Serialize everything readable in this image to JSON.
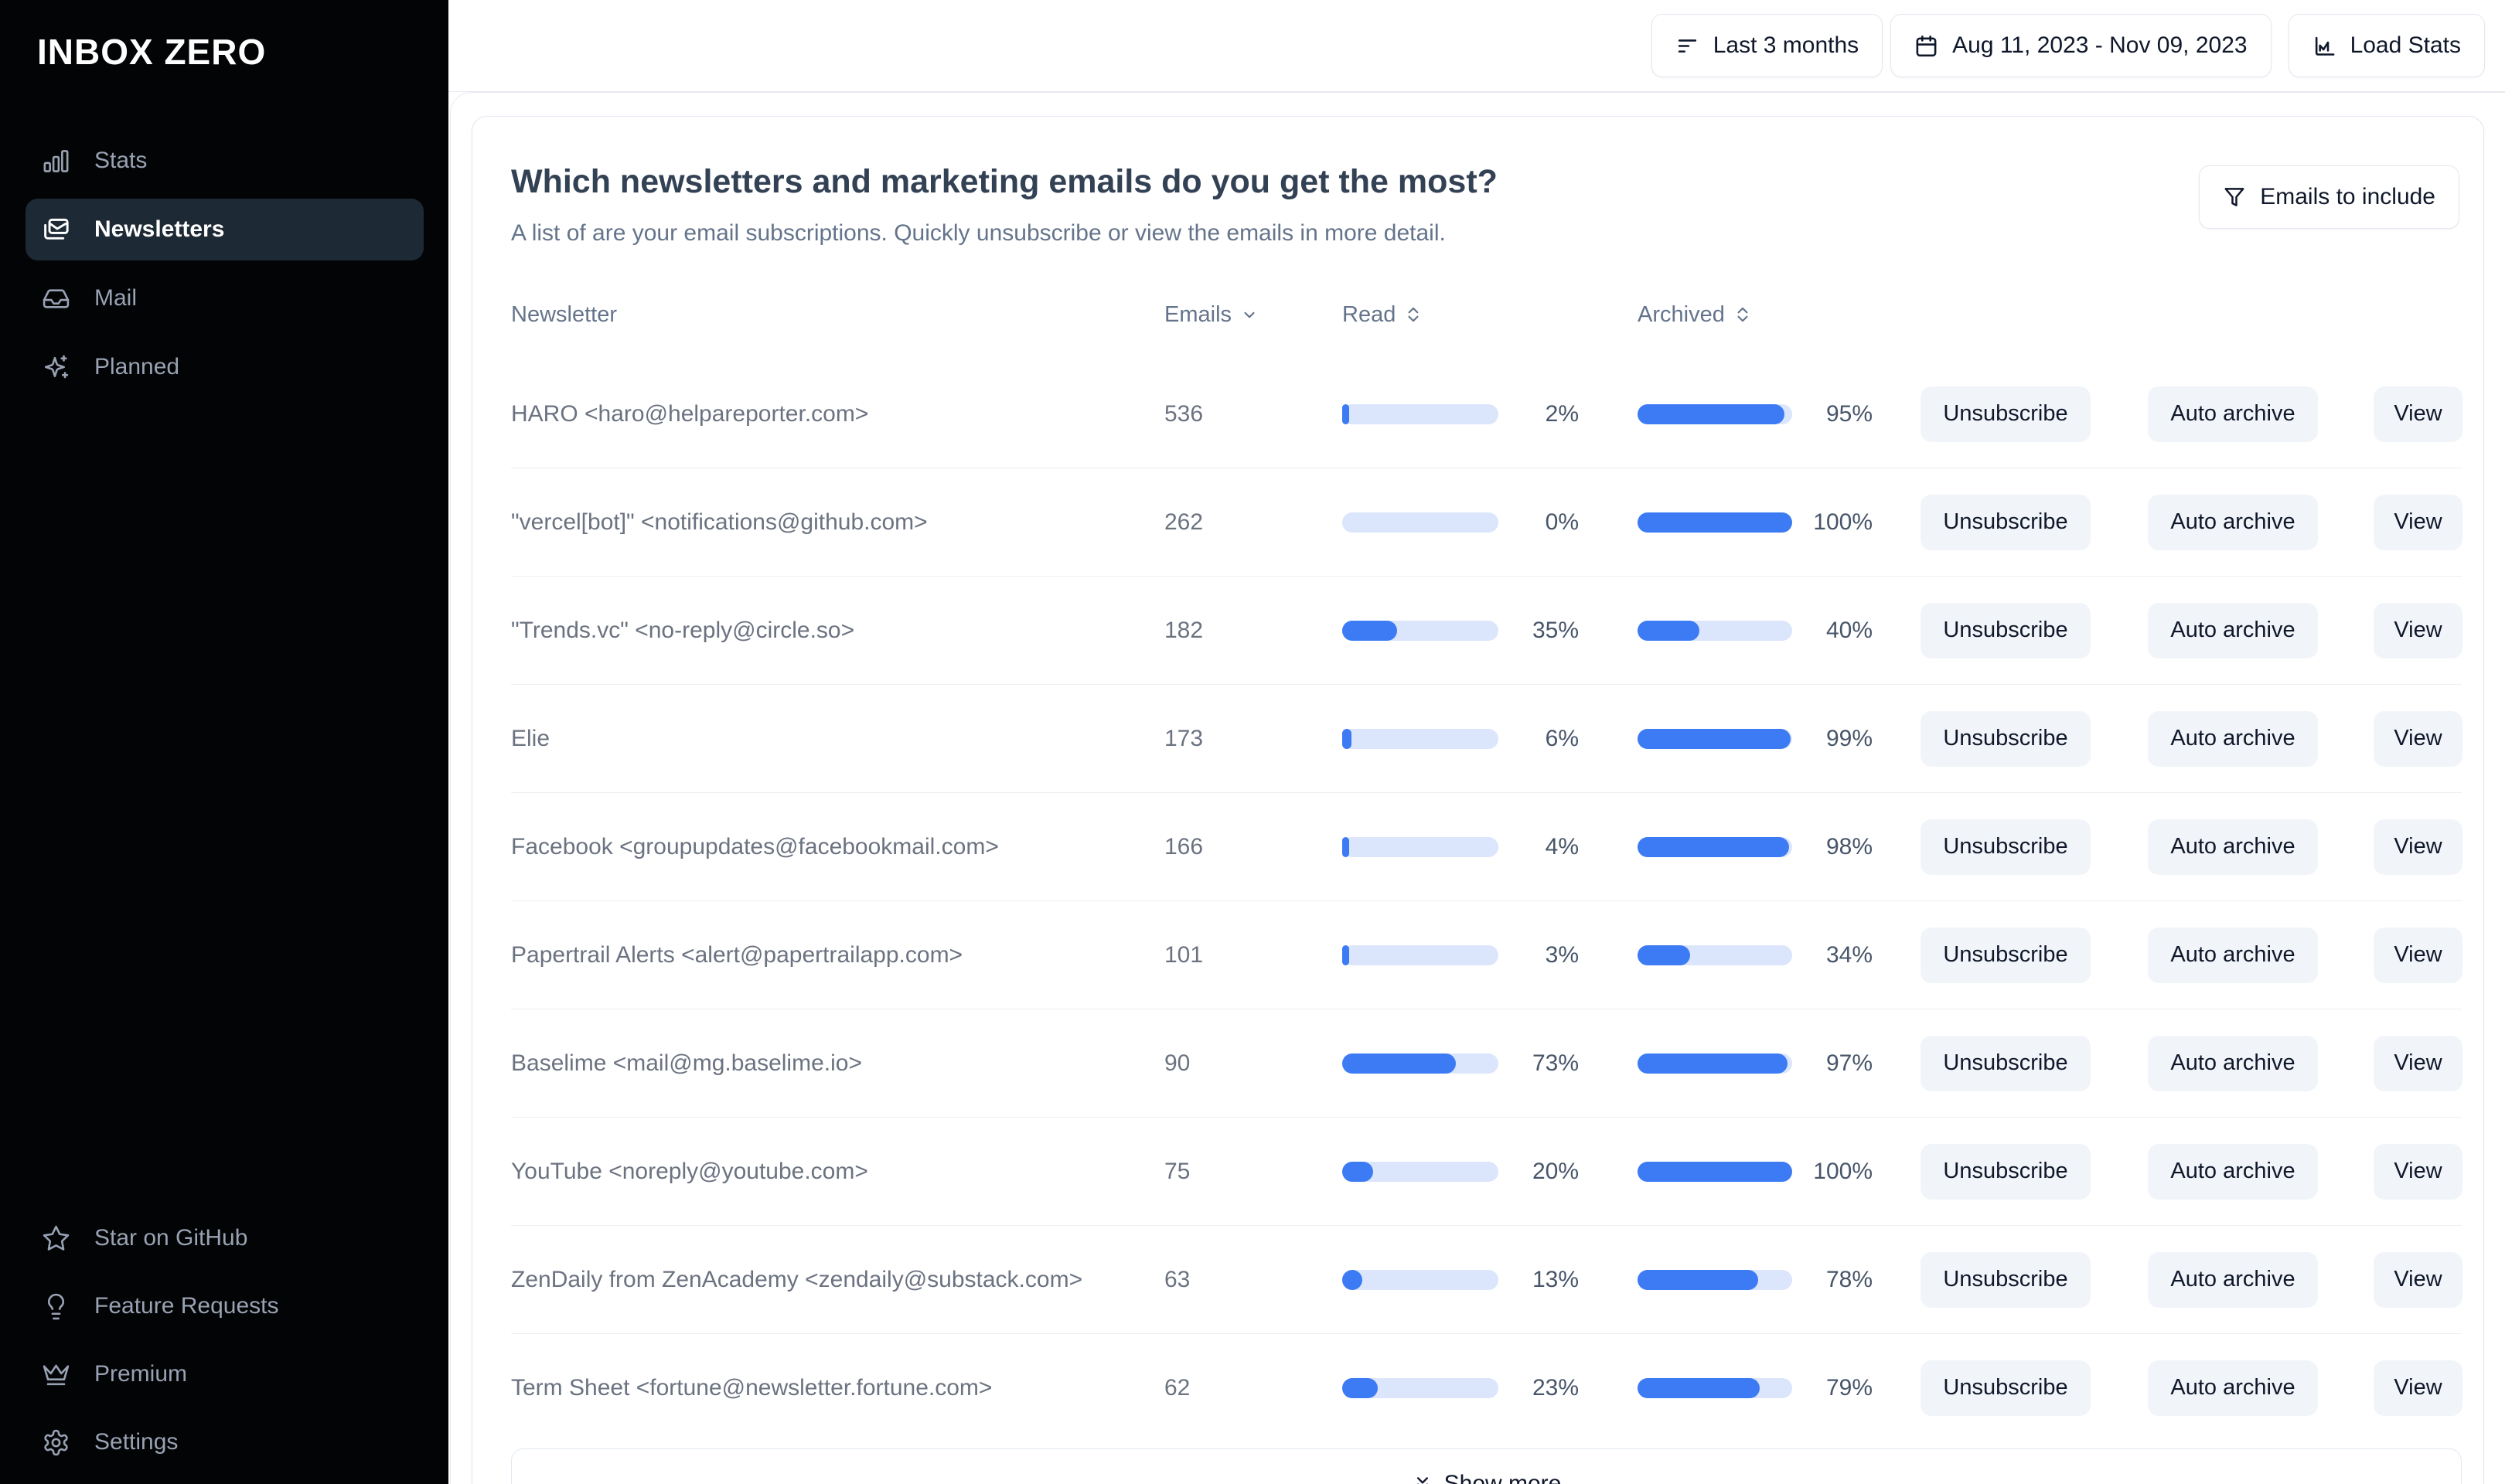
{
  "app": {
    "name": "INBOX ZERO"
  },
  "sidebar": {
    "items": [
      {
        "label": "Stats",
        "icon": "bar-chart-icon",
        "active": false
      },
      {
        "label": "Newsletters",
        "icon": "mails-icon",
        "active": true
      },
      {
        "label": "Mail",
        "icon": "inbox-icon",
        "active": false
      },
      {
        "label": "Planned",
        "icon": "sparkles-icon",
        "active": false
      }
    ],
    "footer_items": [
      {
        "label": "Star on GitHub",
        "icon": "star-icon"
      },
      {
        "label": "Feature Requests",
        "icon": "lightbulb-icon"
      },
      {
        "label": "Premium",
        "icon": "crown-icon"
      },
      {
        "label": "Settings",
        "icon": "gear-icon"
      }
    ]
  },
  "topbar": {
    "range_button": "Last 3 months",
    "date_range_button": "Aug 11, 2023 - Nov 09, 2023",
    "load_stats_button": "Load Stats"
  },
  "panel": {
    "title": "Which newsletters and marketing emails do you get the most?",
    "subtitle": "A list of are your email subscriptions. Quickly unsubscribe or view the emails in more detail.",
    "filter_button": "Emails to include",
    "show_more_button": "Show more"
  },
  "table": {
    "columns": [
      {
        "label": "Newsletter",
        "sort": "none"
      },
      {
        "label": "Emails",
        "sort": "desc"
      },
      {
        "label": "Read",
        "sort": "both"
      },
      {
        "label": "Archived",
        "sort": "both"
      }
    ],
    "row_actions": [
      "Unsubscribe",
      "Auto archive",
      "View"
    ],
    "rows": [
      {
        "newsletter": "HARO <haro@helpareporter.com>",
        "emails": 536,
        "read_pct": 2,
        "archived_pct": 95
      },
      {
        "newsletter": "\"vercel[bot]\" <notifications@github.com>",
        "emails": 262,
        "read_pct": 0,
        "archived_pct": 100
      },
      {
        "newsletter": "\"Trends.vc\" <no-reply@circle.so>",
        "emails": 182,
        "read_pct": 35,
        "archived_pct": 40
      },
      {
        "newsletter": "Elie",
        "emails": 173,
        "read_pct": 6,
        "archived_pct": 99
      },
      {
        "newsletter": "Facebook <groupupdates@facebookmail.com>",
        "emails": 166,
        "read_pct": 4,
        "archived_pct": 98
      },
      {
        "newsletter": "Papertrail Alerts <alert@papertrailapp.com>",
        "emails": 101,
        "read_pct": 3,
        "archived_pct": 34
      },
      {
        "newsletter": "Baselime <mail@mg.baselime.io>",
        "emails": 90,
        "read_pct": 73,
        "archived_pct": 97
      },
      {
        "newsletter": "YouTube <noreply@youtube.com>",
        "emails": 75,
        "read_pct": 20,
        "archived_pct": 100
      },
      {
        "newsletter": "ZenDaily from ZenAcademy <zendaily@substack.com>",
        "emails": 63,
        "read_pct": 13,
        "archived_pct": 78
      },
      {
        "newsletter": "Term Sheet <fortune@newsletter.fortune.com>",
        "emails": 62,
        "read_pct": 23,
        "archived_pct": 79
      }
    ]
  },
  "colors": {
    "accent": "#3d7bf4",
    "bar_track": "#dbe5fb",
    "sidebar_active_bg": "#1e2936"
  }
}
